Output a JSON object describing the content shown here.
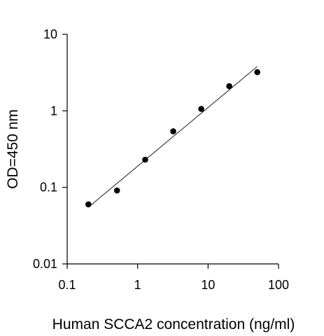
{
  "chart_data": {
    "type": "scatter",
    "title": "",
    "xlabel": "Human SCCA2 concentration (ng/ml)",
    "ylabel": "OD=450 nm",
    "x_scale": "log",
    "y_scale": "log",
    "xlim": [
      0.1,
      100
    ],
    "ylim": [
      0.01,
      10
    ],
    "x_ticks": [
      0.1,
      1,
      10,
      100
    ],
    "x_tick_labels": [
      "0.1",
      "1",
      "10",
      "100"
    ],
    "y_ticks": [
      0.01,
      0.1,
      1,
      10
    ],
    "y_tick_labels": [
      "0.01",
      "0.1",
      "1",
      "10"
    ],
    "grid": false,
    "legend": "none",
    "points": [
      {
        "x": 0.2,
        "y": 0.06
      },
      {
        "x": 0.51,
        "y": 0.091
      },
      {
        "x": 1.28,
        "y": 0.23
      },
      {
        "x": 3.2,
        "y": 0.54
      },
      {
        "x": 8,
        "y": 1.06
      },
      {
        "x": 20,
        "y": 2.1
      },
      {
        "x": 50,
        "y": 3.2
      }
    ],
    "fit_line": {
      "x": [
        0.2,
        50
      ],
      "y": [
        0.055,
        3.8
      ]
    },
    "colors": {
      "marker": "#000000",
      "fit_line": "#000000",
      "axis": "#000000"
    }
  }
}
